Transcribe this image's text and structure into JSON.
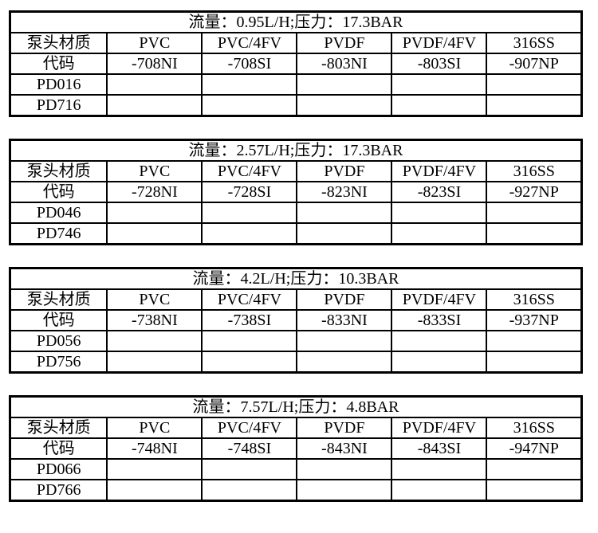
{
  "page": {
    "background_color": "#ffffff",
    "border_color": "#000000",
    "text_color": "#000000"
  },
  "tables": [
    {
      "title": "流量：0.95L/H;压力：17.3BAR",
      "header": [
        "泵头材质",
        "PVC",
        "PVC/4FV",
        "PVDF",
        "PVDF/4FV",
        "316SS"
      ],
      "code": [
        "代码",
        "-708NI",
        "-708SI",
        "-803NI",
        "-803SI",
        "-907NP"
      ],
      "rows": [
        [
          "PD016",
          "",
          "",
          "",
          "",
          ""
        ],
        [
          "PD716",
          "",
          "",
          "",
          "",
          ""
        ]
      ]
    },
    {
      "title": "流量：2.57L/H;压力：17.3BAR",
      "header": [
        "泵头材质",
        "PVC",
        "PVC/4FV",
        "PVDF",
        "PVDF/4FV",
        "316SS"
      ],
      "code": [
        "代码",
        "-728NI",
        "-728SI",
        "-823NI",
        "-823SI",
        "-927NP"
      ],
      "rows": [
        [
          "PD046",
          "",
          "",
          "",
          "",
          ""
        ],
        [
          "PD746",
          "",
          "",
          "",
          "",
          ""
        ]
      ]
    },
    {
      "title": "流量：4.2L/H;压力：10.3BAR",
      "header": [
        "泵头材质",
        "PVC",
        "PVC/4FV",
        "PVDF",
        "PVDF/4FV",
        "316SS"
      ],
      "code": [
        "代码",
        "-738NI",
        "-738SI",
        "-833NI",
        "-833SI",
        "-937NP"
      ],
      "rows": [
        [
          "PD056",
          "",
          "",
          "",
          "",
          ""
        ],
        [
          "PD756",
          "",
          "",
          "",
          "",
          ""
        ]
      ]
    },
    {
      "title": "流量：7.57L/H;压力：4.8BAR",
      "header": [
        "泵头材质",
        "PVC",
        "PVC/4FV",
        "PVDF",
        "PVDF/4FV",
        "316SS"
      ],
      "code": [
        "代码",
        "-748NI",
        "-748SI",
        "-843NI",
        "-843SI",
        "-947NP"
      ],
      "rows": [
        [
          "PD066",
          "",
          "",
          "",
          "",
          ""
        ],
        [
          "PD766",
          "",
          "",
          "",
          "",
          ""
        ]
      ]
    }
  ]
}
